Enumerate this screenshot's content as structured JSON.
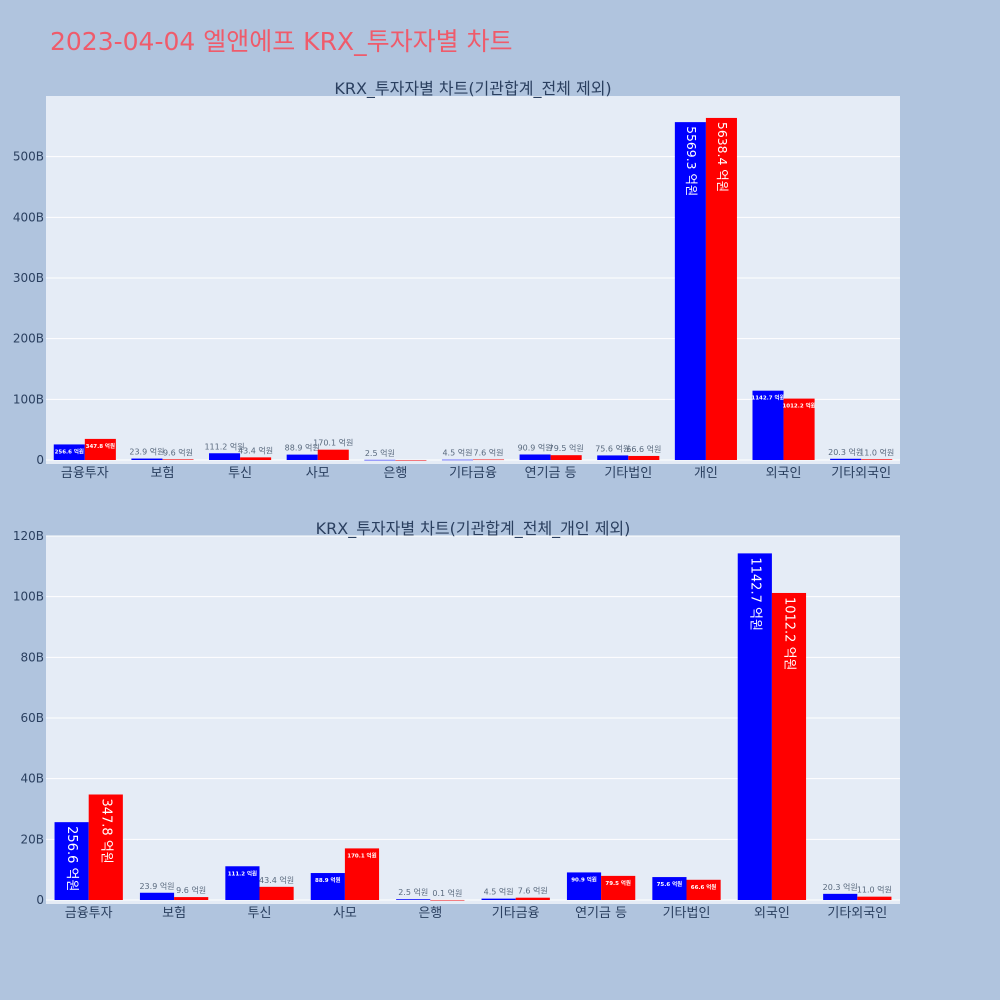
{
  "page": {
    "title": "2023-04-04 엘앤에프 KRX_투자자별 차트"
  },
  "colors": {
    "buy": "#0000ff",
    "sell": "#ff0000",
    "plot_bg": "#e5ecf6",
    "grid": "#ffffff",
    "axis_text": "#2a3f5f"
  },
  "chart_data": [
    {
      "type": "bar",
      "title": "KRX_투자자별 차트(기관합계_전체 제외)",
      "categories": [
        "금융투자",
        "보험",
        "투신",
        "사모",
        "은행",
        "기타금융",
        "연기금 등",
        "기타법인",
        "개인",
        "외국인",
        "기타외국인"
      ],
      "series": [
        {
          "values": [
            25.66,
            2.39,
            11.12,
            8.89,
            0.25,
            0.45,
            9.09,
            7.56,
            556.93,
            114.27,
            2.03
          ],
          "labels": [
            "256.6 억원",
            "23.9 억원",
            "111.2 억원",
            "88.9 억원",
            "2.5 억원",
            "4.5 억원",
            "90.9 억원",
            "75.6 억원",
            "5569.3 억원",
            "1142.7 억원",
            "20.3 억원"
          ]
        },
        {
          "values": [
            34.78,
            0.96,
            4.34,
            17.01,
            0.01,
            0.76,
            7.95,
            6.66,
            563.84,
            101.22,
            1.1
          ],
          "labels": [
            "347.8 억원",
            "9.6 억원",
            "43.4 억원",
            "170.1 억원",
            "",
            "7.6 억원",
            "79.5 억원",
            "66.6 억원",
            "5638.4 억원",
            "1012.2 억원",
            "11.0 억원"
          ]
        }
      ],
      "ylim": [
        0,
        600
      ],
      "yticks": [
        0,
        100,
        200,
        300,
        400,
        500
      ],
      "ytick_labels": [
        "0",
        "100B",
        "200B",
        "300B",
        "400B",
        "500B"
      ],
      "grid": true
    },
    {
      "type": "bar",
      "title": "KRX_투자자별 차트(기관합계_전체_개인 제외)",
      "categories": [
        "금융투자",
        "보험",
        "투신",
        "사모",
        "은행",
        "기타금융",
        "연기금 등",
        "기타법인",
        "외국인",
        "기타외국인"
      ],
      "series": [
        {
          "values": [
            25.66,
            2.39,
            11.12,
            8.89,
            0.25,
            0.45,
            9.09,
            7.56,
            114.27,
            2.03
          ],
          "labels": [
            "256.6 억원",
            "23.9 억원",
            "111.2 억원",
            "88.9 억원",
            "2.5 억원",
            "4.5 억원",
            "90.9 억원",
            "75.6 억원",
            "1142.7 억원",
            "20.3 억원"
          ]
        },
        {
          "values": [
            34.78,
            0.96,
            4.34,
            17.01,
            0.01,
            0.76,
            7.95,
            6.66,
            101.22,
            1.1
          ],
          "labels": [
            "347.8 억원",
            "9.6 억원",
            "43.4 억원",
            "170.1 억원",
            "0.1 억원",
            "7.6 억원",
            "79.5 억원",
            "66.6 억원",
            "1012.2 억원",
            "11.0 억원"
          ]
        }
      ],
      "ylim": [
        0,
        120
      ],
      "yticks": [
        0,
        20,
        40,
        60,
        80,
        100,
        120
      ],
      "ytick_labels": [
        "0",
        "20B",
        "40B",
        "60B",
        "80B",
        "100B",
        "120B"
      ],
      "grid": true
    }
  ]
}
